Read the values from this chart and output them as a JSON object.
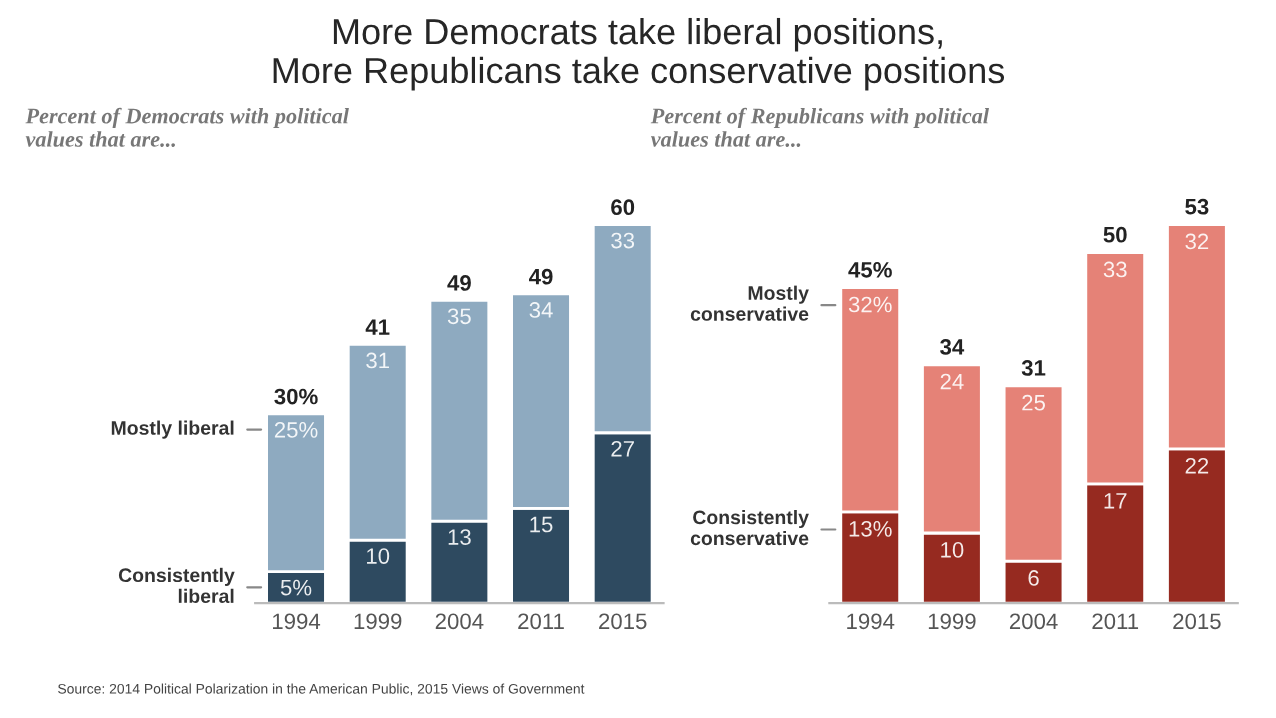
{
  "chart_data": [
    {
      "type": "bar",
      "title": "More Democrats take liberal positions,\nMore Republicans take conservative positions",
      "subtitle": "Percent of Democrats with political\nvalues that are...",
      "categories": [
        "1994",
        "1999",
        "2004",
        "2011",
        "2015"
      ],
      "stacked": true,
      "legend": false,
      "grid": false,
      "series": [
        {
          "name": "Consistently\nliberal",
          "color": "#2e4a60",
          "values": [
            5,
            10,
            13,
            15,
            27
          ],
          "value_labels": [
            "5%",
            "10",
            "13",
            "15",
            "27"
          ]
        },
        {
          "name": "Mostly liberal",
          "color": "#8eaac0",
          "values": [
            25,
            31,
            35,
            34,
            33
          ],
          "value_labels": [
            "25%",
            "31",
            "35",
            "34",
            "33"
          ]
        }
      ],
      "totals": [
        "30%",
        "41",
        "49",
        "49",
        "60"
      ],
      "annotations": [
        "Source: 2014 Political Polarization in the American Public, 2015 Views of Government"
      ]
    },
    {
      "type": "bar",
      "subtitle": "Percent of Republicans with political\nvalues that are...",
      "categories": [
        "1994",
        "1999",
        "2004",
        "2011",
        "2015"
      ],
      "stacked": true,
      "legend": false,
      "grid": false,
      "series": [
        {
          "name": "Consistently\nconservative",
          "color": "#962a20",
          "values": [
            13,
            10,
            6,
            17,
            22
          ],
          "value_labels": [
            "13%",
            "10",
            "6",
            "17",
            "22"
          ]
        },
        {
          "name": "Mostly\nconservative",
          "color": "#e58277",
          "values": [
            32,
            24,
            25,
            33,
            32
          ],
          "value_labels": [
            "32%",
            "24",
            "25",
            "33",
            "32"
          ]
        }
      ],
      "totals": [
        "45%",
        "34",
        "31",
        "50",
        "53"
      ]
    }
  ]
}
